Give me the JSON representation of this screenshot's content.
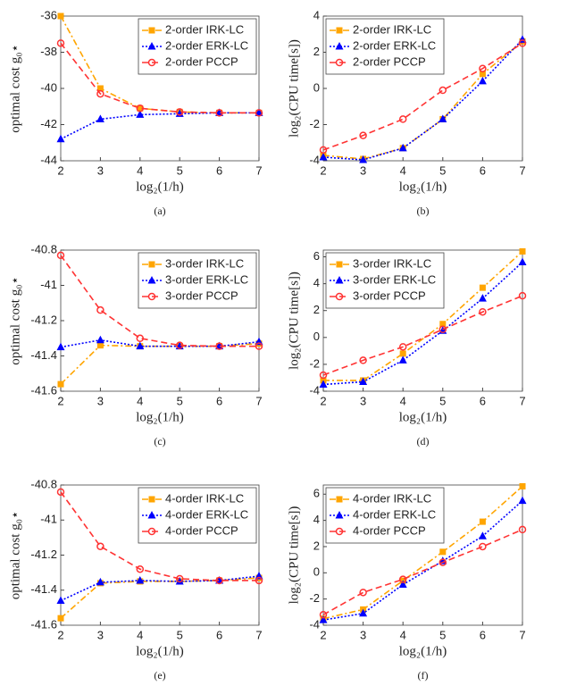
{
  "chart_data": [
    {
      "type": "line",
      "caption": "(a)",
      "xlabel": "log₂(1/h)",
      "ylabel": "optimal cost g₀⋆",
      "x": [
        2,
        3,
        4,
        5,
        6,
        7
      ],
      "xlim": [
        2,
        7
      ],
      "xticks": [
        2,
        3,
        4,
        5,
        6,
        7
      ],
      "ylim": [
        -44,
        -36
      ],
      "yticks": [
        -44,
        -42,
        -40,
        -38,
        -36
      ],
      "legend": "upper right",
      "series": [
        {
          "name": "2-order IRK-LC",
          "color": "#ffa500",
          "marker": "square",
          "dash": "dashdot",
          "values": [
            -36,
            -40,
            -41.1,
            -41.3,
            -41.35,
            -41.35
          ]
        },
        {
          "name": "2-order ERK-LC",
          "color": "#0000ff",
          "marker": "triangle",
          "dash": "dotted",
          "values": [
            -42.8,
            -41.7,
            -41.45,
            -41.4,
            -41.35,
            -41.35
          ]
        },
        {
          "name": "2-order PCCP",
          "color": "#ff3333",
          "marker": "circle",
          "dash": "dashed",
          "values": [
            -37.5,
            -40.3,
            -41.1,
            -41.3,
            -41.35,
            -41.35
          ]
        }
      ]
    },
    {
      "type": "line",
      "caption": "(b)",
      "xlabel": "log₂(1/h)",
      "ylabel": "log₂(CPU time[s])",
      "x": [
        2,
        3,
        4,
        5,
        6,
        7
      ],
      "xlim": [
        2,
        7
      ],
      "xticks": [
        2,
        3,
        4,
        5,
        6,
        7
      ],
      "ylim": [
        -4,
        4
      ],
      "yticks": [
        -4,
        -2,
        0,
        2,
        4
      ],
      "legend": "upper left",
      "series": [
        {
          "name": "2-order IRK-LC",
          "color": "#ffa500",
          "marker": "square",
          "dash": "dashdot",
          "values": [
            -3.7,
            -3.9,
            -3.3,
            -1.7,
            0.8,
            2.6
          ]
        },
        {
          "name": "2-order ERK-LC",
          "color": "#0000ff",
          "marker": "triangle",
          "dash": "dotted",
          "values": [
            -3.8,
            -3.95,
            -3.3,
            -1.7,
            0.4,
            2.7
          ]
        },
        {
          "name": "2-order PCCP",
          "color": "#ff3333",
          "marker": "circle",
          "dash": "dashed",
          "values": [
            -3.4,
            -2.6,
            -1.7,
            -0.1,
            1.1,
            2.5
          ]
        }
      ]
    },
    {
      "type": "line",
      "caption": "(c)",
      "xlabel": "log₂(1/h)",
      "ylabel": "optimal cost g₀⋆",
      "x": [
        2,
        3,
        4,
        5,
        6,
        7
      ],
      "xlim": [
        2,
        7
      ],
      "xticks": [
        2,
        3,
        4,
        5,
        6,
        7
      ],
      "ylim": [
        -41.6,
        -40.8
      ],
      "yticks": [
        -41.6,
        -41.4,
        -41.2,
        -41,
        -40.8
      ],
      "legend": "upper right",
      "series": [
        {
          "name": "3-order IRK-LC",
          "color": "#ffa500",
          "marker": "square",
          "dash": "dashdot",
          "values": [
            -41.56,
            -41.34,
            -41.345,
            -41.345,
            -41.345,
            -41.33
          ]
        },
        {
          "name": "3-order ERK-LC",
          "color": "#0000ff",
          "marker": "triangle",
          "dash": "dotted",
          "values": [
            -41.35,
            -41.31,
            -41.345,
            -41.345,
            -41.345,
            -41.32
          ]
        },
        {
          "name": "3-order PCCP",
          "color": "#ff3333",
          "marker": "circle",
          "dash": "dashed",
          "values": [
            -40.83,
            -41.14,
            -41.3,
            -41.34,
            -41.345,
            -41.345
          ]
        }
      ]
    },
    {
      "type": "line",
      "caption": "(d)",
      "xlabel": "log₂(1/h)",
      "ylabel": "log₂(CPU time[s])",
      "x": [
        2,
        3,
        4,
        5,
        6,
        7
      ],
      "xlim": [
        2,
        7
      ],
      "xticks": [
        2,
        3,
        4,
        5,
        6,
        7
      ],
      "ylim": [
        -4,
        6.5
      ],
      "yticks": [
        -4,
        -2,
        0,
        2,
        4,
        6
      ],
      "legend": "upper left",
      "series": [
        {
          "name": "3-order IRK-LC",
          "color": "#ffa500",
          "marker": "square",
          "dash": "dashdot",
          "values": [
            -3.2,
            -3.2,
            -1.2,
            1.0,
            3.7,
            6.4
          ]
        },
        {
          "name": "3-order ERK-LC",
          "color": "#0000ff",
          "marker": "triangle",
          "dash": "dotted",
          "values": [
            -3.5,
            -3.3,
            -1.7,
            0.5,
            2.9,
            5.6
          ]
        },
        {
          "name": "3-order PCCP",
          "color": "#ff3333",
          "marker": "circle",
          "dash": "dashed",
          "values": [
            -2.8,
            -1.7,
            -0.7,
            0.6,
            1.9,
            3.1
          ]
        }
      ]
    },
    {
      "type": "line",
      "caption": "(e)",
      "xlabel": "log₂(1/h)",
      "ylabel": "optimal cost g₀⋆",
      "x": [
        2,
        3,
        4,
        5,
        6,
        7
      ],
      "xlim": [
        2,
        7
      ],
      "xticks": [
        2,
        3,
        4,
        5,
        6,
        7
      ],
      "ylim": [
        -41.6,
        -40.8
      ],
      "yticks": [
        -41.6,
        -41.4,
        -41.2,
        -41,
        -40.8
      ],
      "legend": "upper right",
      "series": [
        {
          "name": "4-order IRK-LC",
          "color": "#ffa500",
          "marker": "square",
          "dash": "dashdot",
          "values": [
            -41.56,
            -41.36,
            -41.35,
            -41.35,
            -41.345,
            -41.33
          ]
        },
        {
          "name": "4-order ERK-LC",
          "color": "#0000ff",
          "marker": "triangle",
          "dash": "dotted",
          "values": [
            -41.46,
            -41.355,
            -41.345,
            -41.35,
            -41.345,
            -41.32
          ]
        },
        {
          "name": "4-order PCCP",
          "color": "#ff3333",
          "marker": "circle",
          "dash": "dashed",
          "values": [
            -40.84,
            -41.15,
            -41.28,
            -41.335,
            -41.345,
            -41.345
          ]
        }
      ]
    },
    {
      "type": "line",
      "caption": "(f)",
      "xlabel": "log₂(1/h)",
      "ylabel": "log₂(CPU time[s])",
      "x": [
        2,
        3,
        4,
        5,
        6,
        7
      ],
      "xlim": [
        2,
        7
      ],
      "xticks": [
        2,
        3,
        4,
        5,
        6,
        7
      ],
      "ylim": [
        -4,
        6.7
      ],
      "yticks": [
        -4,
        -2,
        0,
        2,
        4,
        6
      ],
      "legend": "upper left",
      "series": [
        {
          "name": "4-order IRK-LC",
          "color": "#ffa500",
          "marker": "square",
          "dash": "dashdot",
          "values": [
            -3.5,
            -2.8,
            -0.6,
            1.6,
            3.9,
            6.6
          ]
        },
        {
          "name": "4-order ERK-LC",
          "color": "#0000ff",
          "marker": "triangle",
          "dash": "dotted",
          "values": [
            -3.6,
            -3.1,
            -0.9,
            0.9,
            2.8,
            5.5
          ]
        },
        {
          "name": "4-order PCCP",
          "color": "#ff3333",
          "marker": "circle",
          "dash": "dashed",
          "values": [
            -3.2,
            -1.5,
            -0.5,
            0.8,
            2.0,
            3.3
          ]
        }
      ]
    }
  ]
}
